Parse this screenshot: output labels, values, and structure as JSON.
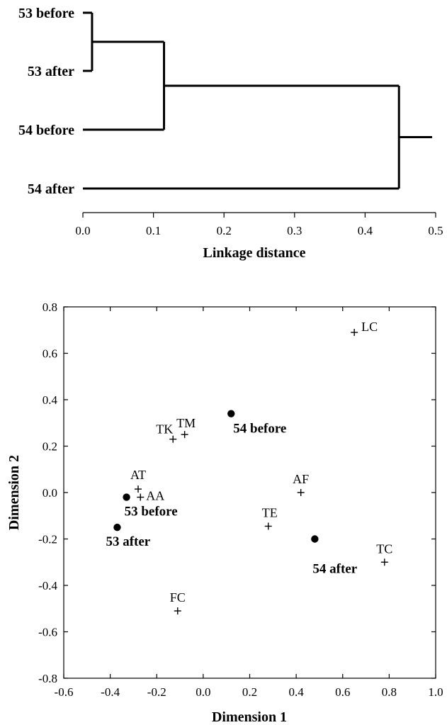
{
  "chart_data": [
    {
      "type": "dendrogram",
      "xlabel": "Linkage distance",
      "xlim": [
        0.0,
        0.5
      ],
      "xticks": [
        0.0,
        0.1,
        0.2,
        0.3,
        0.4,
        0.5
      ],
      "xtick_labels": [
        "0.0",
        "0.1",
        "0.2",
        "0.3",
        "0.4",
        "0.5"
      ],
      "leaves": [
        "53 before",
        "53 after",
        "54 before",
        "54 after"
      ],
      "merges": [
        {
          "left": "53 before",
          "right": "53 after",
          "distance": 0.013
        },
        {
          "left": "(53 before, 53 after)",
          "right": "54 before",
          "distance": 0.115
        },
        {
          "left": "(53 before, 53 after, 54 before)",
          "right": "54 after",
          "distance": 0.448
        }
      ],
      "root_extent": 0.495
    },
    {
      "type": "scatter",
      "xlabel": "Dimension 1",
      "ylabel": "Dimension 2",
      "xlim": [
        -0.6,
        1.0
      ],
      "ylim": [
        -0.8,
        0.8
      ],
      "xticks": [
        -0.6,
        -0.4,
        -0.2,
        0.0,
        0.2,
        0.4,
        0.6,
        0.8,
        1.0
      ],
      "xtick_labels": [
        "-0.6",
        "-0.4",
        "-0.2",
        "0.0",
        "0.2",
        "0.4",
        "0.6",
        "0.8",
        "1.0"
      ],
      "yticks": [
        -0.8,
        -0.6,
        -0.4,
        -0.2,
        0.0,
        0.2,
        0.4,
        0.6,
        0.8
      ],
      "ytick_labels": [
        "-0.8",
        "-0.6",
        "-0.4",
        "-0.2",
        "0.0",
        "0.2",
        "0.4",
        "0.6",
        "0.8"
      ],
      "points": [
        {
          "label": "53 before",
          "x": -0.33,
          "y": -0.02,
          "marker": "dot"
        },
        {
          "label": "53 after",
          "x": -0.37,
          "y": -0.15,
          "marker": "dot"
        },
        {
          "label": "54 before",
          "x": 0.12,
          "y": 0.34,
          "marker": "dot"
        },
        {
          "label": "54 after",
          "x": 0.48,
          "y": -0.2,
          "marker": "dot"
        },
        {
          "label": "LC",
          "x": 0.65,
          "y": 0.69,
          "marker": "plus"
        },
        {
          "label": "TK",
          "x": -0.13,
          "y": 0.23,
          "marker": "plus"
        },
        {
          "label": "TM",
          "x": -0.08,
          "y": 0.25,
          "marker": "plus"
        },
        {
          "label": "AT",
          "x": -0.28,
          "y": 0.015,
          "marker": "plus"
        },
        {
          "label": "AA",
          "x": -0.27,
          "y": -0.02,
          "marker": "plus"
        },
        {
          "label": "AF",
          "x": 0.42,
          "y": 0.0,
          "marker": "plus"
        },
        {
          "label": "TE",
          "x": 0.28,
          "y": -0.145,
          "marker": "plus"
        },
        {
          "label": "TC",
          "x": 0.78,
          "y": -0.3,
          "marker": "plus"
        },
        {
          "label": "FC",
          "x": -0.11,
          "y": -0.51,
          "marker": "plus"
        }
      ]
    }
  ]
}
